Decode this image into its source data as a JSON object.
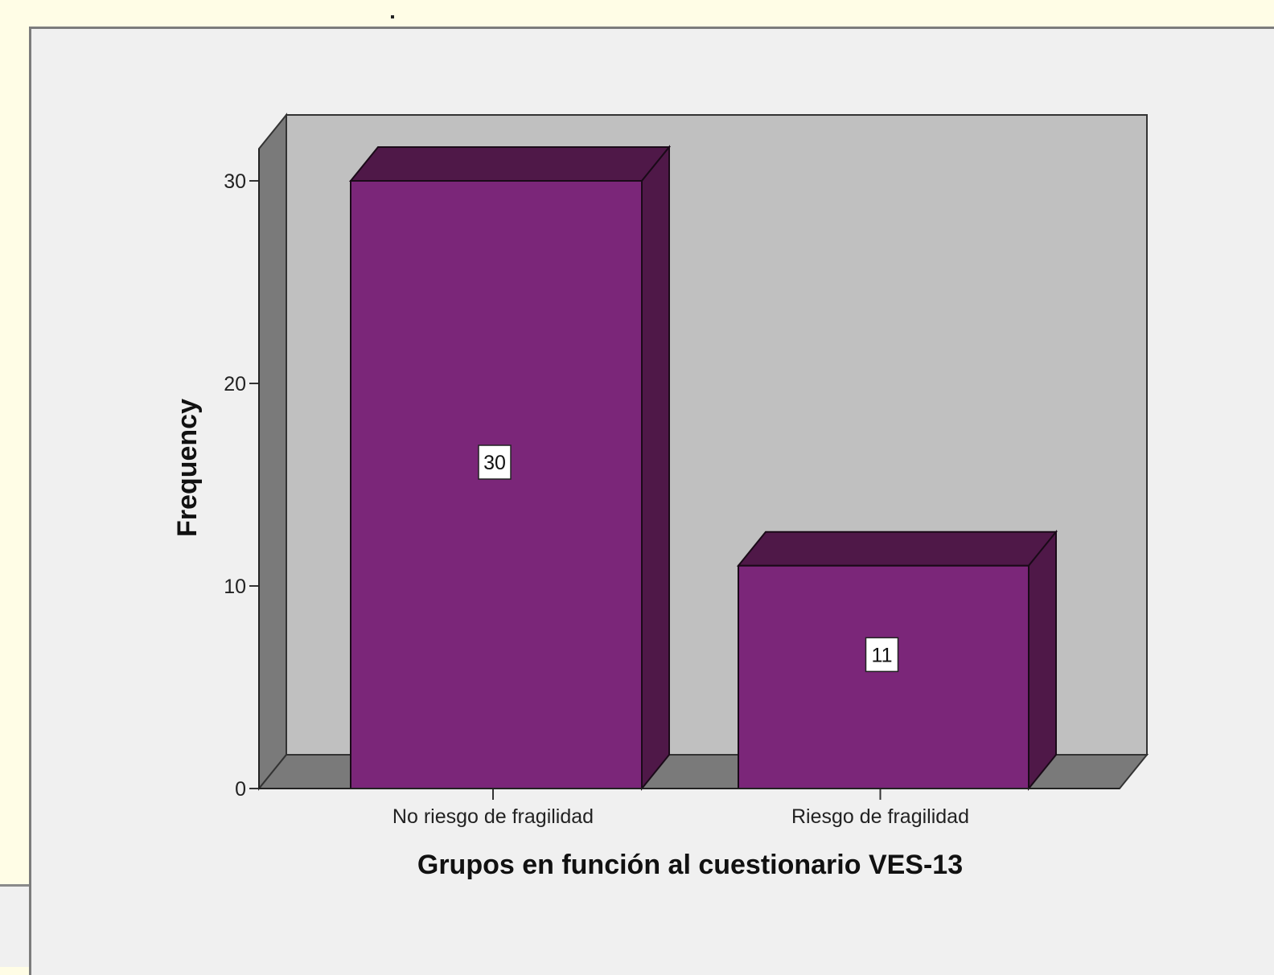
{
  "chart_data": {
    "type": "bar",
    "style": "3d",
    "categories": [
      "No riesgo de fragilidad",
      "Riesgo de fragilidad"
    ],
    "values": [
      30,
      11
    ],
    "data_labels": [
      "30",
      "11"
    ],
    "xlabel": "Grupos en función al cuestionario VES-13",
    "ylabel": "Frequency",
    "ylim": [
      0,
      30
    ],
    "yticks": [
      0,
      10,
      20,
      30
    ],
    "ytick_labels": [
      "0",
      "10",
      "20",
      "30"
    ],
    "grid": false,
    "legend": "none",
    "colors": {
      "bar_front": "#7b2679",
      "bar_top": "#4f1848",
      "bar_side": "#4f1848",
      "wall": "#c0c0c0",
      "floor": "#7a7a7a",
      "panel": "#f0f0f0"
    }
  }
}
